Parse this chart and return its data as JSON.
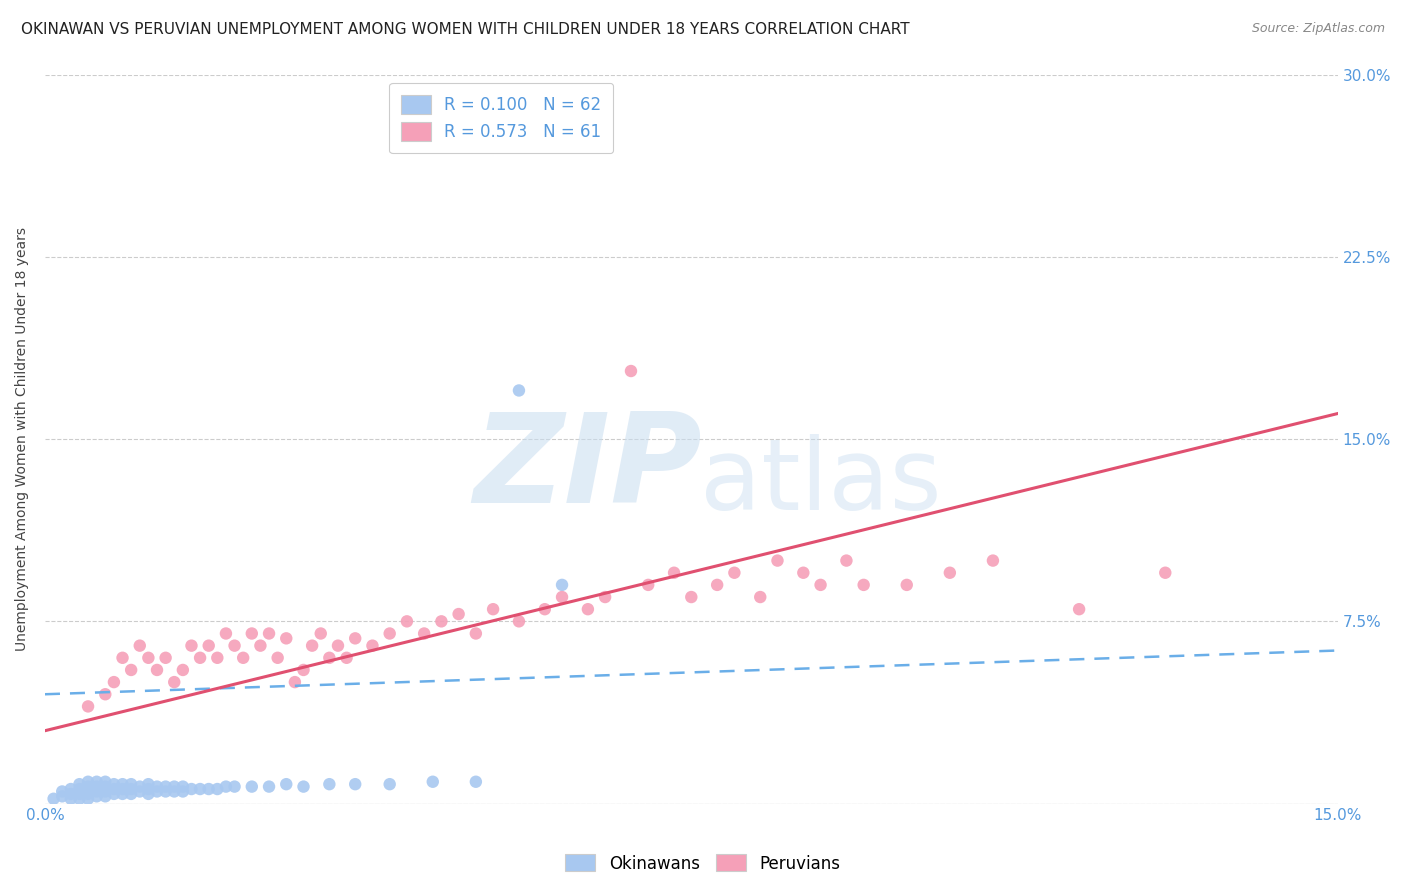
{
  "title": "OKINAWAN VS PERUVIAN UNEMPLOYMENT AMONG WOMEN WITH CHILDREN UNDER 18 YEARS CORRELATION CHART",
  "source": "Source: ZipAtlas.com",
  "ylabel": "Unemployment Among Women with Children Under 18 years",
  "xlim": [
    0.0,
    0.15
  ],
  "ylim": [
    0.0,
    0.3
  ],
  "legend_r_okinawan": "R = 0.100",
  "legend_n_okinawan": "N = 62",
  "legend_r_peruvian": "R = 0.573",
  "legend_n_peruvian": "N = 61",
  "okinawan_color": "#a8c8f0",
  "peruvian_color": "#f5a0b8",
  "okinawan_line_color": "#6aaee8",
  "peruvian_line_color": "#e05070",
  "grid_color": "#cccccc",
  "background_color": "#ffffff",
  "title_fontsize": 11,
  "axis_label_fontsize": 10,
  "tick_fontsize": 11,
  "legend_fontsize": 12,
  "ok_x": [
    0.001,
    0.002,
    0.002,
    0.003,
    0.003,
    0.003,
    0.004,
    0.004,
    0.004,
    0.004,
    0.005,
    0.005,
    0.005,
    0.005,
    0.005,
    0.006,
    0.006,
    0.006,
    0.006,
    0.007,
    0.007,
    0.007,
    0.007,
    0.008,
    0.008,
    0.008,
    0.009,
    0.009,
    0.009,
    0.01,
    0.01,
    0.01,
    0.011,
    0.011,
    0.012,
    0.012,
    0.012,
    0.013,
    0.013,
    0.014,
    0.014,
    0.015,
    0.015,
    0.016,
    0.016,
    0.017,
    0.018,
    0.019,
    0.02,
    0.021,
    0.022,
    0.024,
    0.026,
    0.028,
    0.03,
    0.033,
    0.036,
    0.04,
    0.045,
    0.05,
    0.055,
    0.06
  ],
  "ok_y": [
    0.002,
    0.003,
    0.005,
    0.002,
    0.004,
    0.006,
    0.002,
    0.004,
    0.006,
    0.008,
    0.002,
    0.004,
    0.006,
    0.007,
    0.009,
    0.003,
    0.005,
    0.007,
    0.009,
    0.003,
    0.005,
    0.007,
    0.009,
    0.004,
    0.006,
    0.008,
    0.004,
    0.006,
    0.008,
    0.004,
    0.006,
    0.008,
    0.005,
    0.007,
    0.004,
    0.006,
    0.008,
    0.005,
    0.007,
    0.005,
    0.007,
    0.005,
    0.007,
    0.005,
    0.007,
    0.006,
    0.006,
    0.006,
    0.006,
    0.007,
    0.007,
    0.007,
    0.007,
    0.008,
    0.007,
    0.008,
    0.008,
    0.008,
    0.009,
    0.009,
    0.17,
    0.09
  ],
  "per_x": [
    0.005,
    0.007,
    0.008,
    0.009,
    0.01,
    0.011,
    0.012,
    0.013,
    0.014,
    0.015,
    0.016,
    0.017,
    0.018,
    0.019,
    0.02,
    0.021,
    0.022,
    0.023,
    0.024,
    0.025,
    0.026,
    0.027,
    0.028,
    0.029,
    0.03,
    0.031,
    0.032,
    0.033,
    0.034,
    0.035,
    0.036,
    0.038,
    0.04,
    0.042,
    0.044,
    0.046,
    0.048,
    0.05,
    0.052,
    0.055,
    0.058,
    0.06,
    0.063,
    0.065,
    0.068,
    0.07,
    0.073,
    0.075,
    0.078,
    0.08,
    0.083,
    0.085,
    0.088,
    0.09,
    0.093,
    0.095,
    0.1,
    0.105,
    0.11,
    0.12,
    0.13
  ],
  "per_y": [
    0.04,
    0.045,
    0.05,
    0.06,
    0.055,
    0.065,
    0.06,
    0.055,
    0.06,
    0.05,
    0.055,
    0.065,
    0.06,
    0.065,
    0.06,
    0.07,
    0.065,
    0.06,
    0.07,
    0.065,
    0.07,
    0.06,
    0.068,
    0.05,
    0.055,
    0.065,
    0.07,
    0.06,
    0.065,
    0.06,
    0.068,
    0.065,
    0.07,
    0.075,
    0.07,
    0.075,
    0.078,
    0.07,
    0.08,
    0.075,
    0.08,
    0.085,
    0.08,
    0.085,
    0.178,
    0.09,
    0.095,
    0.085,
    0.09,
    0.095,
    0.085,
    0.1,
    0.095,
    0.09,
    0.1,
    0.09,
    0.09,
    0.095,
    0.1,
    0.08,
    0.095
  ]
}
